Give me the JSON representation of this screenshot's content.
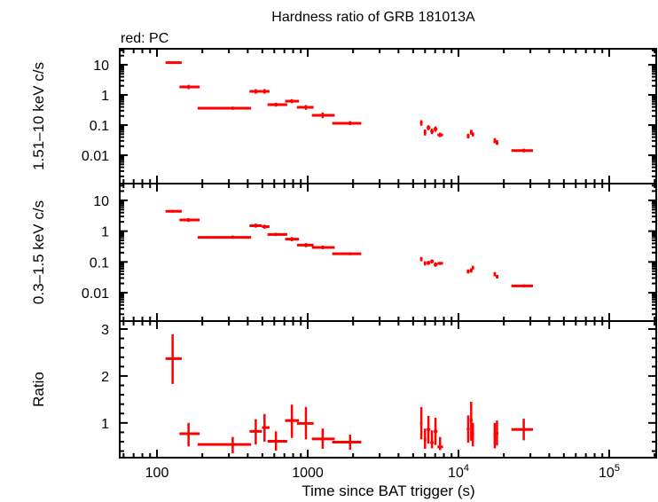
{
  "title": "Hardness ratio of GRB 181013A",
  "legend_note": "red: PC",
  "xlabel": "Time since BAT trigger (s)",
  "colors": {
    "series": "#ff0000",
    "axes": "#000000",
    "background": "#ffffff"
  },
  "x_axis": {
    "scale": "log",
    "range": [
      56.6,
      205000
    ],
    "ticks": [
      {
        "value": 100,
        "label": "100"
      },
      {
        "value": 1000,
        "label": "1000"
      },
      {
        "value": 10000,
        "label": "10",
        "exp": "4"
      },
      {
        "value": 100000,
        "label": "10",
        "exp": "5"
      }
    ]
  },
  "chart_data": [
    {
      "type": "scatter",
      "panel": "top",
      "ylabel": "1.51–10 keV c/s",
      "yscale": "log",
      "ylim": [
        0.00115,
        33.8
      ],
      "yticks": [
        {
          "value": 10,
          "label": "10"
        },
        {
          "value": 1,
          "label": "1"
        },
        {
          "value": 0.1,
          "label": "0.1"
        },
        {
          "value": 0.01,
          "label": "0.01"
        }
      ],
      "columns": [
        "t",
        "t_lo",
        "t_hi",
        "y",
        "y_lo",
        "y_hi"
      ],
      "points": [
        [
          127,
          114,
          146,
          11.7,
          10.6,
          12.9
        ],
        [
          162,
          141,
          192,
          1.84,
          1.55,
          2.15
        ],
        [
          318,
          186,
          421,
          0.362,
          0.32,
          0.41
        ],
        [
          452,
          411,
          497,
          1.31,
          1.1,
          1.55
        ],
        [
          517,
          497,
          558,
          1.31,
          1.1,
          1.55
        ],
        [
          615,
          541,
          731,
          0.474,
          0.41,
          0.55
        ],
        [
          785,
          708,
          875,
          0.62,
          0.53,
          0.72
        ],
        [
          973,
          848,
          1094,
          0.387,
          0.32,
          0.46
        ],
        [
          1256,
          1065,
          1510,
          0.211,
          0.17,
          0.26
        ],
        [
          1910,
          1453,
          2266,
          0.115,
          0.1,
          0.135
        ],
        [
          5670,
          5560,
          5780,
          0.117,
          0.095,
          0.145
        ],
        [
          6000,
          5880,
          6120,
          0.058,
          0.045,
          0.072
        ],
        [
          6320,
          6150,
          6500,
          0.082,
          0.068,
          0.098
        ],
        [
          6670,
          6500,
          6850,
          0.062,
          0.05,
          0.076
        ],
        [
          7040,
          6850,
          7250,
          0.074,
          0.06,
          0.09
        ],
        [
          7550,
          7250,
          7900,
          0.047,
          0.04,
          0.056
        ],
        [
          11600,
          11350,
          11850,
          0.043,
          0.036,
          0.052
        ],
        [
          12140,
          11900,
          12400,
          0.059,
          0.048,
          0.07
        ],
        [
          12460,
          12250,
          12700,
          0.049,
          0.042,
          0.057
        ],
        [
          17400,
          17100,
          17700,
          0.03,
          0.025,
          0.037
        ],
        [
          18000,
          17700,
          18400,
          0.026,
          0.022,
          0.032
        ],
        [
          27100,
          22440,
          31190,
          0.0143,
          0.0125,
          0.0165
        ]
      ]
    },
    {
      "type": "scatter",
      "panel": "middle",
      "ylabel": "0.3–1.5 keV c/s",
      "yscale": "log",
      "ylim": [
        0.0012,
        35
      ],
      "yticks": [
        {
          "value": 10,
          "label": "10"
        },
        {
          "value": 1,
          "label": "1"
        },
        {
          "value": 0.1,
          "label": "0.1"
        },
        {
          "value": 0.01,
          "label": "0.01"
        }
      ],
      "columns": [
        "t",
        "t_lo",
        "t_hi",
        "y",
        "y_lo",
        "y_hi"
      ],
      "points": [
        [
          127,
          114,
          146,
          4.42,
          4.0,
          4.9
        ],
        [
          162,
          141,
          192,
          2.31,
          2.0,
          2.65
        ],
        [
          318,
          186,
          421,
          0.63,
          0.57,
          0.72
        ],
        [
          452,
          411,
          497,
          1.5,
          1.3,
          1.75
        ],
        [
          517,
          497,
          558,
          1.4,
          1.2,
          1.62
        ],
        [
          615,
          541,
          731,
          0.78,
          0.69,
          0.88
        ],
        [
          785,
          708,
          875,
          0.55,
          0.47,
          0.64
        ],
        [
          973,
          848,
          1094,
          0.35,
          0.3,
          0.41
        ],
        [
          1256,
          1065,
          1510,
          0.295,
          0.26,
          0.34
        ],
        [
          1910,
          1453,
          2266,
          0.184,
          0.165,
          0.205
        ],
        [
          5670,
          5560,
          5780,
          0.124,
          0.105,
          0.145
        ],
        [
          6000,
          5880,
          6120,
          0.09,
          0.077,
          0.105
        ],
        [
          6320,
          6150,
          6500,
          0.093,
          0.08,
          0.108
        ],
        [
          6670,
          6500,
          6850,
          0.105,
          0.09,
          0.12
        ],
        [
          7040,
          6850,
          7250,
          0.082,
          0.07,
          0.097
        ],
        [
          7550,
          7250,
          7900,
          0.09,
          0.08,
          0.1
        ],
        [
          11600,
          11350,
          11850,
          0.049,
          0.042,
          0.057
        ],
        [
          12140,
          11900,
          12400,
          0.053,
          0.045,
          0.062
        ],
        [
          12460,
          12250,
          12700,
          0.065,
          0.056,
          0.075
        ],
        [
          17400,
          17100,
          17700,
          0.04,
          0.034,
          0.047
        ],
        [
          18000,
          17700,
          18400,
          0.033,
          0.029,
          0.038
        ],
        [
          27100,
          22440,
          31190,
          0.0166,
          0.0148,
          0.0186
        ]
      ]
    },
    {
      "type": "scatter",
      "panel": "bottom",
      "ylabel": "Ratio",
      "yscale": "linear",
      "ylim": [
        0.26,
        3.17
      ],
      "yticks": [
        {
          "value": 3,
          "label": "3"
        },
        {
          "value": 2,
          "label": "2"
        },
        {
          "value": 1,
          "label": "1"
        }
      ],
      "columns": [
        "t",
        "t_lo",
        "t_hi",
        "y",
        "y_lo",
        "y_hi"
      ],
      "points": [
        [
          127,
          114,
          146,
          2.37,
          1.83,
          2.89
        ],
        [
          162,
          141,
          192,
          0.77,
          0.5,
          1.0
        ],
        [
          318,
          186,
          421,
          0.54,
          0.35,
          0.7
        ],
        [
          452,
          411,
          497,
          0.82,
          0.54,
          1.08
        ],
        [
          517,
          497,
          558,
          0.9,
          0.6,
          1.19
        ],
        [
          615,
          541,
          731,
          0.61,
          0.41,
          0.82
        ],
        [
          785,
          708,
          875,
          1.05,
          0.68,
          1.39
        ],
        [
          973,
          848,
          1094,
          0.99,
          0.65,
          1.34
        ],
        [
          1256,
          1065,
          1510,
          0.66,
          0.45,
          0.88
        ],
        [
          1910,
          1453,
          2266,
          0.59,
          0.43,
          0.75
        ],
        [
          5670,
          5560,
          5780,
          0.99,
          0.65,
          1.34
        ],
        [
          6000,
          5880,
          6120,
          0.65,
          0.45,
          0.88
        ],
        [
          6320,
          6150,
          6500,
          0.86,
          0.56,
          1.15
        ],
        [
          6670,
          6500,
          6850,
          0.58,
          0.46,
          0.84
        ],
        [
          7040,
          6850,
          7250,
          0.82,
          0.53,
          1.11
        ],
        [
          7550,
          7250,
          7900,
          0.49,
          0.42,
          0.7
        ],
        [
          11600,
          11350,
          11850,
          0.87,
          0.58,
          1.16
        ],
        [
          12140,
          11900,
          12400,
          1.06,
          0.62,
          1.45
        ],
        [
          12460,
          12250,
          12700,
          0.76,
          0.5,
          1.0
        ],
        [
          17400,
          17100,
          17700,
          0.75,
          0.46,
          1.0
        ],
        [
          18000,
          17700,
          18400,
          0.78,
          0.52,
          1.05
        ],
        [
          27100,
          22440,
          31190,
          0.86,
          0.63,
          1.09
        ]
      ]
    }
  ]
}
